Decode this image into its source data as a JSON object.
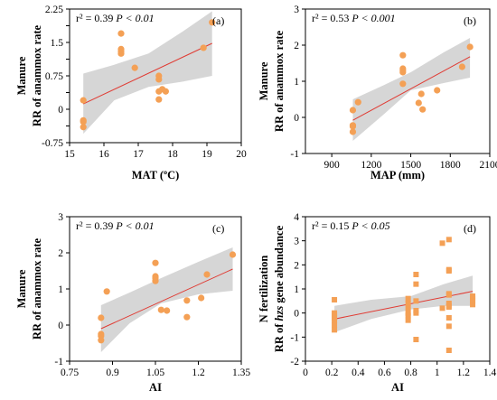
{
  "chart_data": [
    {
      "panel_label": "(a)",
      "type": "scatter",
      "stat": {
        "r2": "r² = 0.39",
        "p": "P < 0.01"
      },
      "xlabel": "MAT (ºC)",
      "ylabel": [
        "Manure",
        "RR of anammox rate"
      ],
      "xlim": [
        15,
        20
      ],
      "ylim": [
        -0.75,
        2.25
      ],
      "xticks": [
        15,
        16,
        17,
        18,
        19,
        20
      ],
      "yticks": [
        -0.75,
        -0.3,
        0.15,
        0.6,
        1.05,
        1.5,
        1.95
      ],
      "xtick_labels": [
        "15",
        "16",
        "17",
        "18",
        "19",
        "20"
      ],
      "ytick_labels": [
        "-0.75",
        "",
        "0",
        "",
        "0.75",
        "",
        "1.5",
        "",
        "2.25"
      ],
      "ytick_label_values": [
        -0.75,
        -0.375,
        0,
        0.375,
        0.75,
        1.125,
        1.5,
        1.875,
        2.25
      ],
      "points": [
        [
          15.4,
          0.2
        ],
        [
          15.4,
          -0.25
        ],
        [
          15.4,
          -0.28
        ],
        [
          15.4,
          -0.4
        ],
        [
          16.5,
          1.7
        ],
        [
          16.5,
          1.35
        ],
        [
          16.5,
          1.3
        ],
        [
          16.5,
          1.25
        ],
        [
          16.9,
          0.93
        ],
        [
          17.6,
          0.75
        ],
        [
          17.6,
          0.67
        ],
        [
          17.7,
          0.45
        ],
        [
          17.6,
          0.4
        ],
        [
          17.8,
          0.4
        ],
        [
          17.6,
          0.22
        ],
        [
          18.9,
          1.38
        ],
        [
          19.15,
          1.95
        ]
      ],
      "fit": {
        "x": [
          15.4,
          19.15
        ],
        "y": [
          0.12,
          1.48
        ]
      },
      "band": {
        "x": [
          15.4,
          16.3,
          17.3,
          18.3,
          19.15
        ],
        "lower": [
          -0.55,
          0.2,
          0.5,
          0.62,
          0.75
        ],
        "upper": [
          0.8,
          1.0,
          1.25,
          1.75,
          2.2
        ]
      },
      "marker": "circle",
      "color": "#f4a055"
    },
    {
      "panel_label": "(b)",
      "type": "scatter",
      "stat": {
        "r2": "r² = 0.53",
        "p": "P < 0.001"
      },
      "xlabel": "MAP (mm)",
      "ylabel": [
        "Manure",
        "RR of anammox rate"
      ],
      "xlim": [
        700,
        2100
      ],
      "ylim": [
        -1,
        3
      ],
      "xticks": [
        900,
        1200,
        1500,
        1800,
        2100
      ],
      "xtick_labels": [
        "900",
        "1200",
        "1500",
        "1800",
        "2100"
      ],
      "ytick_labels": [
        "-1",
        "0",
        "1",
        "2",
        "3"
      ],
      "ytick_label_values": [
        -1,
        0,
        1,
        2,
        3
      ],
      "points": [
        [
          1060,
          0.2
        ],
        [
          1060,
          -0.25
        ],
        [
          1060,
          -0.4
        ],
        [
          1060,
          -0.22
        ],
        [
          1100,
          0.42
        ],
        [
          1440,
          1.72
        ],
        [
          1440,
          1.35
        ],
        [
          1440,
          1.3
        ],
        [
          1440,
          1.25
        ],
        [
          1440,
          0.93
        ],
        [
          1560,
          0.4
        ],
        [
          1580,
          0.65
        ],
        [
          1590,
          0.22
        ],
        [
          1700,
          0.75
        ],
        [
          1890,
          1.4
        ],
        [
          1950,
          1.95
        ]
      ],
      "fit": {
        "x": [
          1060,
          1950
        ],
        "y": [
          -0.08,
          1.68
        ]
      },
      "band": {
        "x": [
          1060,
          1300,
          1500,
          1750,
          1950
        ],
        "lower": [
          -0.65,
          0.1,
          0.75,
          0.95,
          1.1
        ],
        "upper": [
          0.5,
          0.9,
          1.25,
          1.8,
          2.2
        ]
      },
      "marker": "circle",
      "color": "#f4a055"
    },
    {
      "panel_label": "(c)",
      "type": "scatter",
      "stat": {
        "r2": "r² = 0.39",
        "p": "P < 0.01"
      },
      "xlabel": "AI",
      "ylabel": [
        "Manure",
        "RR of anammox rate"
      ],
      "xlim": [
        0.75,
        1.35
      ],
      "ylim": [
        -1,
        3
      ],
      "xticks": [
        0.75,
        0.9,
        1.05,
        1.2,
        1.35
      ],
      "xtick_labels": [
        "0.75",
        "0.9",
        "1.05",
        "1.2",
        "1.35"
      ],
      "ytick_labels": [
        "-1",
        "0",
        "1",
        "2",
        "3"
      ],
      "ytick_label_values": [
        -1,
        0,
        1,
        2,
        3
      ],
      "points": [
        [
          0.86,
          0.2
        ],
        [
          0.86,
          -0.25
        ],
        [
          0.86,
          -0.3
        ],
        [
          0.86,
          -0.42
        ],
        [
          0.88,
          0.93
        ],
        [
          1.05,
          1.72
        ],
        [
          1.05,
          1.35
        ],
        [
          1.05,
          1.3
        ],
        [
          1.05,
          1.22
        ],
        [
          1.07,
          0.42
        ],
        [
          1.09,
          0.4
        ],
        [
          1.16,
          0.68
        ],
        [
          1.16,
          0.22
        ],
        [
          1.21,
          0.75
        ],
        [
          1.23,
          1.4
        ],
        [
          1.32,
          1.95
        ]
      ],
      "fit": {
        "x": [
          0.86,
          1.32
        ],
        "y": [
          -0.1,
          1.55
        ]
      },
      "band": {
        "x": [
          0.86,
          0.96,
          1.07,
          1.2,
          1.32
        ],
        "lower": [
          -0.75,
          0.05,
          0.6,
          0.85,
          0.95
        ],
        "upper": [
          0.55,
          0.9,
          1.3,
          1.75,
          2.15
        ]
      },
      "marker": "circle",
      "color": "#f4a055"
    },
    {
      "panel_label": "(d)",
      "type": "scatter",
      "stat": {
        "r2": "r² = 0.15",
        "p": "P < 0.05"
      },
      "xlabel": "AI",
      "ylabel_parts": [
        "N fertilization",
        "RR of ",
        "hzs",
        " gene abundance"
      ],
      "xlim": [
        0,
        1.4
      ],
      "ylim": [
        -2,
        4
      ],
      "xticks": [
        0,
        0.2,
        0.4,
        0.6,
        0.8,
        1,
        1.2,
        1.4
      ],
      "xtick_labels": [
        "0",
        "0.2",
        "0.4",
        "0.6",
        "0.8",
        "1",
        "1.2",
        "1.4"
      ],
      "ytick_labels": [
        "-2",
        "-1",
        "0",
        "1",
        "2",
        "3",
        "4"
      ],
      "ytick_label_values": [
        -2,
        -1,
        0,
        1,
        2,
        3,
        4
      ],
      "points": [
        [
          0.22,
          0.55
        ],
        [
          0.22,
          0.0
        ],
        [
          0.22,
          -0.1
        ],
        [
          0.22,
          -0.2
        ],
        [
          0.22,
          -0.3
        ],
        [
          0.22,
          -0.5
        ],
        [
          0.22,
          -0.7
        ],
        [
          0.78,
          0.6
        ],
        [
          0.78,
          0.4
        ],
        [
          0.78,
          0.2
        ],
        [
          0.78,
          0.0
        ],
        [
          0.78,
          -0.1
        ],
        [
          0.78,
          -0.3
        ],
        [
          0.84,
          1.6
        ],
        [
          0.84,
          1.2
        ],
        [
          0.84,
          0.5
        ],
        [
          0.84,
          0.1
        ],
        [
          0.84,
          0.0
        ],
        [
          0.84,
          -1.1
        ],
        [
          1.04,
          2.9
        ],
        [
          1.04,
          0.2
        ],
        [
          1.09,
          3.05
        ],
        [
          1.09,
          1.8
        ],
        [
          1.09,
          1.75
        ],
        [
          1.09,
          0.8
        ],
        [
          1.09,
          0.75
        ],
        [
          1.09,
          0.4
        ],
        [
          1.09,
          0.3
        ],
        [
          1.09,
          0.25
        ],
        [
          1.09,
          -0.2
        ],
        [
          1.09,
          -0.55
        ],
        [
          1.09,
          -1.55
        ],
        [
          1.27,
          0.7
        ],
        [
          1.27,
          0.6
        ],
        [
          1.27,
          0.5
        ],
        [
          1.27,
          0.35
        ]
      ],
      "fit": {
        "x": [
          0.22,
          1.27
        ],
        "y": [
          -0.25,
          0.9
        ]
      },
      "band": {
        "x": [
          0.22,
          0.5,
          0.8,
          1.05,
          1.27
        ],
        "lower": [
          -0.8,
          -0.25,
          0.15,
          0.3,
          0.3
        ],
        "upper": [
          0.3,
          0.55,
          0.7,
          1.2,
          1.55
        ]
      },
      "marker": "square",
      "color": "#f4a055"
    }
  ]
}
